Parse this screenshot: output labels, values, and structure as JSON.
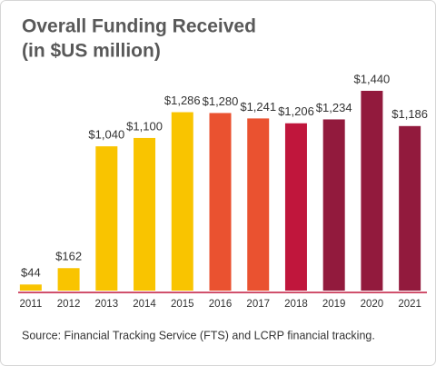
{
  "chart_data": {
    "type": "bar",
    "title": "Overall Funding Received",
    "subtitle": "(in $US million)",
    "categories": [
      "2011",
      "2012",
      "2013",
      "2014",
      "2015",
      "2016",
      "2017",
      "2018",
      "2019",
      "2020",
      "2021"
    ],
    "values": [
      44,
      162,
      1040,
      1100,
      1286,
      1280,
      1241,
      1206,
      1234,
      1440,
      1186
    ],
    "value_labels": [
      "$44",
      "$162",
      "$1,040",
      "$1,100",
      "$1,286",
      "$1,280",
      "$1,241",
      "$1,206",
      "$1,234",
      "$1,440",
      "$1,186"
    ],
    "colors": [
      "#f9c400",
      "#f9c400",
      "#f9c400",
      "#f9c400",
      "#f9c400",
      "#ea5230",
      "#ea5230",
      "#c0163c",
      "#921a3d",
      "#921a3d",
      "#921a3d"
    ],
    "source": "Source: Financial Tracking Service (FTS) and LCRP financial tracking."
  }
}
